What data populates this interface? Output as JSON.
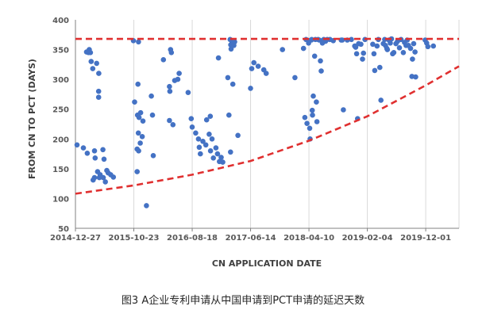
{
  "caption": "图3 A企业专利申请从中国申请到PCT申请的延迟天数",
  "chart_data": {
    "type": "scatter",
    "xlabel": "CN APPLICATION DATE",
    "ylabel": "FROM CN TO PCT  (DAYS)",
    "x_ticks": [
      "2014-12-27",
      "2015-10-23",
      "2016-08-18",
      "2017-06-14",
      "2018-04-10",
      "2019-02-04",
      "2019-12-01"
    ],
    "xlim": [
      "2014-12-27",
      "2020-05-20"
    ],
    "ylim": [
      50,
      400
    ],
    "y_ticks": [
      50,
      100,
      150,
      200,
      250,
      300,
      350,
      400
    ],
    "grid": "vertical-only",
    "colors": {
      "points": "#4472C4",
      "reference": "#E03030",
      "axis": "#808080",
      "grid": "#D9D9D9"
    },
    "series": [
      {
        "name": "",
        "marker": "circle",
        "points": [
          [
            "2015-01-04",
            190
          ],
          [
            "2015-02-06",
            185
          ],
          [
            "2015-02-26",
            176
          ],
          [
            "2015-03-04",
            345
          ],
          [
            "2015-03-08",
            350
          ],
          [
            "2015-03-14",
            345
          ],
          [
            "2015-03-18",
            330
          ],
          [
            "2015-03-26",
            318
          ],
          [
            "2015-04-04",
            180
          ],
          [
            "2015-03-28",
            131
          ],
          [
            "2015-04-04",
            135
          ],
          [
            "2015-04-07",
            168
          ],
          [
            "2015-04-15",
            327
          ],
          [
            "2015-04-20",
            145
          ],
          [
            "2015-04-25",
            280
          ],
          [
            "2015-04-25",
            270
          ],
          [
            "2015-04-26",
            310
          ],
          [
            "2015-04-29",
            135
          ],
          [
            "2015-05-03",
            140
          ],
          [
            "2015-05-17",
            182
          ],
          [
            "2015-05-19",
            135
          ],
          [
            "2015-05-23",
            166
          ],
          [
            "2015-05-30",
            128
          ],
          [
            "2015-06-06",
            147
          ],
          [
            "2015-06-13",
            143
          ],
          [
            "2015-06-26",
            140
          ],
          [
            "2015-07-10",
            136
          ],
          [
            "2015-02-22",
            346
          ],
          [
            "2015-10-21",
            365
          ],
          [
            "2015-10-27",
            262
          ],
          [
            "2015-11-09",
            145
          ],
          [
            "2015-11-09",
            183
          ],
          [
            "2015-11-11",
            240
          ],
          [
            "2015-11-13",
            292
          ],
          [
            "2015-11-15",
            210
          ],
          [
            "2015-11-16",
            363
          ],
          [
            "2015-11-17",
            180
          ],
          [
            "2015-11-19",
            236
          ],
          [
            "2015-11-25",
            193
          ],
          [
            "2015-11-27",
            244
          ],
          [
            "2015-12-05",
            204
          ],
          [
            "2015-12-09",
            230
          ],
          [
            "2015-12-27",
            88
          ],
          [
            "2016-01-21",
            272
          ],
          [
            "2016-01-27",
            240
          ],
          [
            "2016-01-31",
            172
          ],
          [
            "2016-03-23",
            333
          ],
          [
            "2016-04-23",
            231
          ],
          [
            "2016-04-23",
            288
          ],
          [
            "2016-04-25",
            280
          ],
          [
            "2016-04-29",
            350
          ],
          [
            "2016-05-03",
            345
          ],
          [
            "2016-05-11",
            224
          ],
          [
            "2016-05-20",
            298
          ],
          [
            "2016-06-05",
            300
          ],
          [
            "2016-06-12",
            310
          ],
          [
            "2016-07-28",
            278
          ],
          [
            "2016-08-13",
            234
          ],
          [
            "2016-08-18",
            220
          ],
          [
            "2016-09-05",
            210
          ],
          [
            "2016-09-19",
            200
          ],
          [
            "2016-09-23",
            186
          ],
          [
            "2016-09-29",
            175
          ],
          [
            "2016-10-12",
            196
          ],
          [
            "2016-10-27",
            190
          ],
          [
            "2016-10-31",
            232
          ],
          [
            "2016-11-13",
            208
          ],
          [
            "2016-11-19",
            238
          ],
          [
            "2016-11-20",
            180
          ],
          [
            "2016-11-28",
            200
          ],
          [
            "2016-12-05",
            168
          ],
          [
            "2016-12-18",
            185
          ],
          [
            "2016-12-26",
            175
          ],
          [
            "2016-12-31",
            336
          ],
          [
            "2017-01-05",
            162
          ],
          [
            "2017-01-14",
            169
          ],
          [
            "2017-01-22",
            161
          ],
          [
            "2017-02-17",
            303
          ],
          [
            "2017-02-23",
            240
          ],
          [
            "2017-03-03",
            178
          ],
          [
            "2017-03-01",
            367
          ],
          [
            "2017-03-04",
            358
          ],
          [
            "2017-03-06",
            351
          ],
          [
            "2017-03-11",
            362
          ],
          [
            "2017-03-15",
            292
          ],
          [
            "2017-03-20",
            357
          ],
          [
            "2017-03-24",
            363
          ],
          [
            "2017-04-10",
            206
          ],
          [
            "2017-06-14",
            285
          ],
          [
            "2017-06-20",
            318
          ],
          [
            "2017-07-01",
            328
          ],
          [
            "2017-07-23",
            322
          ],
          [
            "2017-08-21",
            316
          ],
          [
            "2017-09-02",
            310
          ],
          [
            "2017-11-25",
            350
          ],
          [
            "2018-01-28",
            303
          ],
          [
            "2018-03-13",
            352
          ],
          [
            "2018-03-20",
            236
          ],
          [
            "2018-03-26",
            367
          ],
          [
            "2018-03-31",
            226
          ],
          [
            "2018-04-08",
            361
          ],
          [
            "2018-04-10",
            365
          ],
          [
            "2018-04-14",
            218
          ],
          [
            "2018-04-16",
            200
          ],
          [
            "2018-04-22",
            366
          ],
          [
            "2018-04-24",
            367
          ],
          [
            "2018-04-27",
            248
          ],
          [
            "2018-04-28",
            240
          ],
          [
            "2018-05-02",
            272
          ],
          [
            "2018-05-09",
            339
          ],
          [
            "2018-05-13",
            367
          ],
          [
            "2018-05-18",
            262
          ],
          [
            "2018-05-21",
            229
          ],
          [
            "2018-05-27",
            367
          ],
          [
            "2018-06-02",
            366
          ],
          [
            "2018-06-08",
            331
          ],
          [
            "2018-06-12",
            314
          ],
          [
            "2018-06-18",
            361
          ],
          [
            "2018-06-25",
            367
          ],
          [
            "2018-07-04",
            364
          ],
          [
            "2018-07-13",
            367
          ],
          [
            "2018-07-27",
            367
          ],
          [
            "2018-08-13",
            365
          ],
          [
            "2018-09-23",
            366
          ],
          [
            "2018-09-28",
            366
          ],
          [
            "2018-10-04",
            249
          ],
          [
            "2018-10-24",
            366
          ],
          [
            "2018-11-14",
            367
          ],
          [
            "2018-12-01",
            356
          ],
          [
            "2018-12-06",
            354
          ],
          [
            "2018-12-11",
            343
          ],
          [
            "2018-12-16",
            234
          ],
          [
            "2018-12-21",
            360
          ],
          [
            "2019-01-02",
            359
          ],
          [
            "2019-01-10",
            334
          ],
          [
            "2019-01-15",
            344
          ],
          [
            "2019-01-23",
            367
          ],
          [
            "2019-03-04",
            359
          ],
          [
            "2019-03-10",
            343
          ],
          [
            "2019-03-14",
            315
          ],
          [
            "2019-03-26",
            356
          ],
          [
            "2019-04-02",
            367
          ],
          [
            "2019-04-09",
            320
          ],
          [
            "2019-04-15",
            265
          ],
          [
            "2019-04-27",
            360
          ],
          [
            "2019-05-04",
            367
          ],
          [
            "2019-05-08",
            357
          ],
          [
            "2019-05-15",
            352
          ],
          [
            "2019-05-18",
            350
          ],
          [
            "2019-05-26",
            366
          ],
          [
            "2019-06-02",
            361
          ],
          [
            "2019-06-08",
            368
          ],
          [
            "2019-06-14",
            343
          ],
          [
            "2019-06-20",
            345
          ],
          [
            "2019-07-01",
            360
          ],
          [
            "2019-07-09",
            364
          ],
          [
            "2019-07-19",
            353
          ],
          [
            "2019-07-27",
            367
          ],
          [
            "2019-08-08",
            345
          ],
          [
            "2019-08-14",
            362
          ],
          [
            "2019-08-22",
            357
          ],
          [
            "2019-08-28",
            366
          ],
          [
            "2019-09-03",
            357
          ],
          [
            "2019-09-14",
            352
          ],
          [
            "2019-09-21",
            305
          ],
          [
            "2019-09-24",
            334
          ],
          [
            "2019-09-30",
            360
          ],
          [
            "2019-10-07",
            346
          ],
          [
            "2019-10-10",
            304
          ],
          [
            "2019-11-28",
            366
          ],
          [
            "2019-12-06",
            361
          ],
          [
            "2019-12-12",
            355
          ],
          [
            "2020-01-09",
            356
          ]
        ]
      }
    ],
    "reference_lines": [
      {
        "kind": "horizontal",
        "y": 368,
        "style": "dashed",
        "color": "#E03030"
      },
      {
        "kind": "exponential",
        "style": "dashed",
        "color": "#E03030",
        "points": [
          [
            "2014-12-27",
            108
          ],
          [
            "2015-10-23",
            122
          ],
          [
            "2016-08-18",
            140
          ],
          [
            "2017-06-14",
            163
          ],
          [
            "2018-04-10",
            197
          ],
          [
            "2019-02-04",
            238
          ],
          [
            "2019-12-01",
            290
          ],
          [
            "2020-05-20",
            322
          ]
        ]
      }
    ]
  }
}
